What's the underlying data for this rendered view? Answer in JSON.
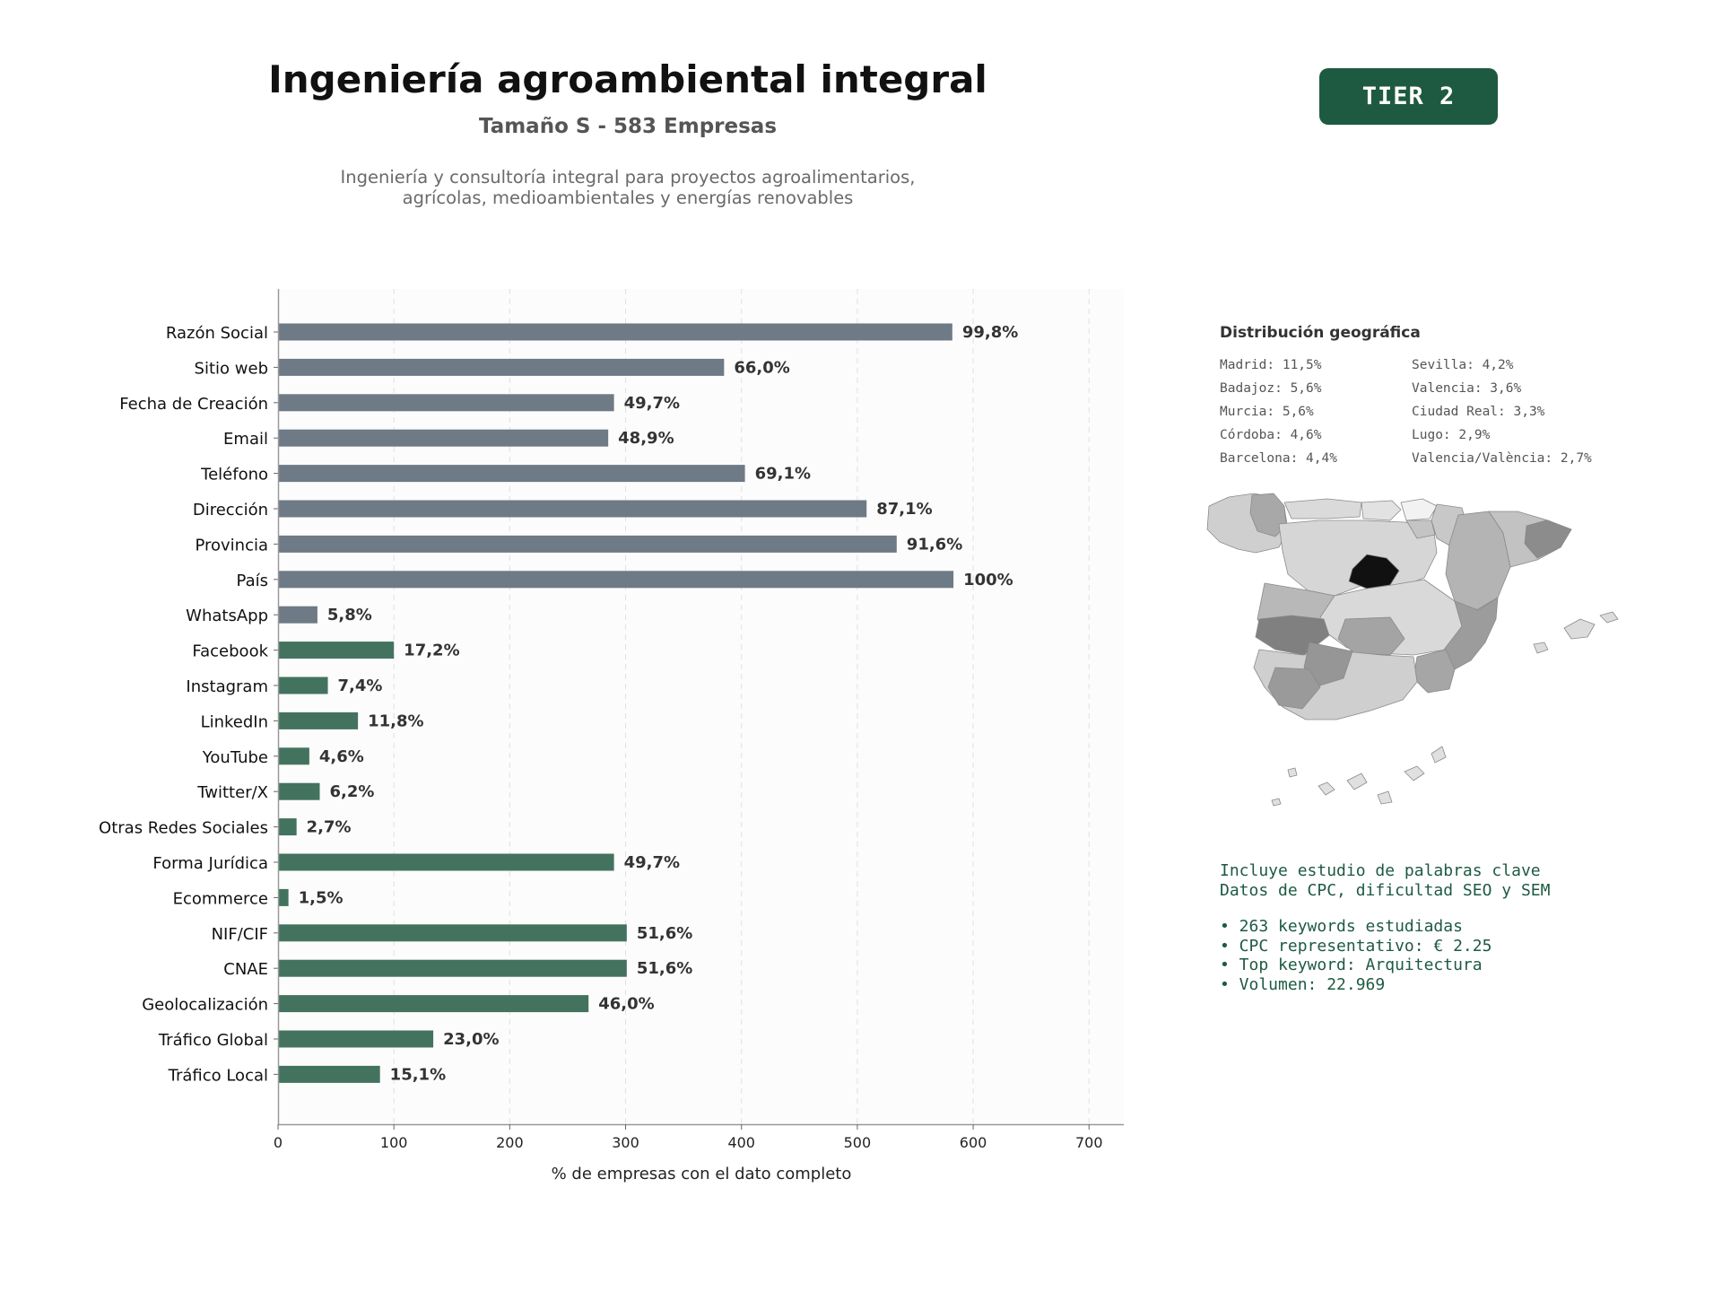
{
  "header": {
    "title": "Ingeniería agroambiental integral",
    "subtitle": "Tamaño S - 583 Empresas",
    "description_line1": "Ingeniería y consultoría integral para proyectos agroalimentarios,",
    "description_line2": "agrícolas, medioambientales y energías renovables"
  },
  "badge": {
    "label": "TIER 2",
    "background": "#1e5a42",
    "text_color": "#ffffff"
  },
  "colors": {
    "gray_bar": "#6e7a85",
    "green_bar": "#43735f",
    "plot_background": "#fcfcfc",
    "label_text": "#333333"
  },
  "chart_data": {
    "type": "bar",
    "orientation": "horizontal",
    "categories": [
      "Razón Social",
      "Sitio web",
      "Fecha de Creación",
      "Email",
      "Teléfono",
      "Dirección",
      "Provincia",
      "País",
      "WhatsApp",
      "Facebook",
      "Instagram",
      "LinkedIn",
      "YouTube",
      "Twitter/X",
      "Otras Redes Sociales",
      "Forma Jurídica",
      "Ecommerce",
      "NIF/CIF",
      "CNAE",
      "Geolocalización",
      "Tráfico Global",
      "Tráfico Local"
    ],
    "values": [
      582,
      385,
      290,
      285,
      403,
      508,
      534,
      583,
      34,
      100,
      43,
      69,
      27,
      36,
      16,
      290,
      9,
      301,
      301,
      268,
      134,
      88
    ],
    "data_labels": [
      "99,8%",
      "66,0%",
      "49,7%",
      "48,9%",
      "69,1%",
      "87,1%",
      "91,6%",
      "100%",
      "5,8%",
      "17,2%",
      "7,4%",
      "11,8%",
      "4,6%",
      "6,2%",
      "2,7%",
      "49,7%",
      "1,5%",
      "51,6%",
      "51,6%",
      "46,0%",
      "23,0%",
      "15,1%"
    ],
    "bar_groups": [
      "gray",
      "gray",
      "gray",
      "gray",
      "gray",
      "gray",
      "gray",
      "gray",
      "gray",
      "green",
      "green",
      "green",
      "green",
      "green",
      "green",
      "green",
      "green",
      "green",
      "green",
      "green",
      "green",
      "green"
    ],
    "xlabel": "% de empresas con el dato completo",
    "ylabel": "",
    "xlim": [
      0,
      730
    ],
    "xticks": [
      0,
      100,
      200,
      300,
      400,
      500,
      600,
      700
    ],
    "grid": "vertical dashed"
  },
  "geo": {
    "title": "Distribución geográfica",
    "entries": [
      "Madrid: 11,5%",
      "Sevilla: 4,2%",
      "Badajoz: 5,6%",
      "Valencia: 3,6%",
      "Murcia: 5,6%",
      "Ciudad Real: 3,3%",
      "Córdoba: 4,6%",
      "Lugo: 2,9%",
      "Barcelona: 4,4%",
      "Valencia/València: 2,7%"
    ]
  },
  "info": {
    "line1": "Incluye estudio de palabras clave",
    "line2": "Datos de CPC, dificultad SEO y SEM",
    "bullets": [
      "• 263 keywords estudiadas",
      "• CPC representativo: € 2.25",
      "• Top keyword: Arquitectura",
      "• Volumen: 22.969"
    ]
  }
}
